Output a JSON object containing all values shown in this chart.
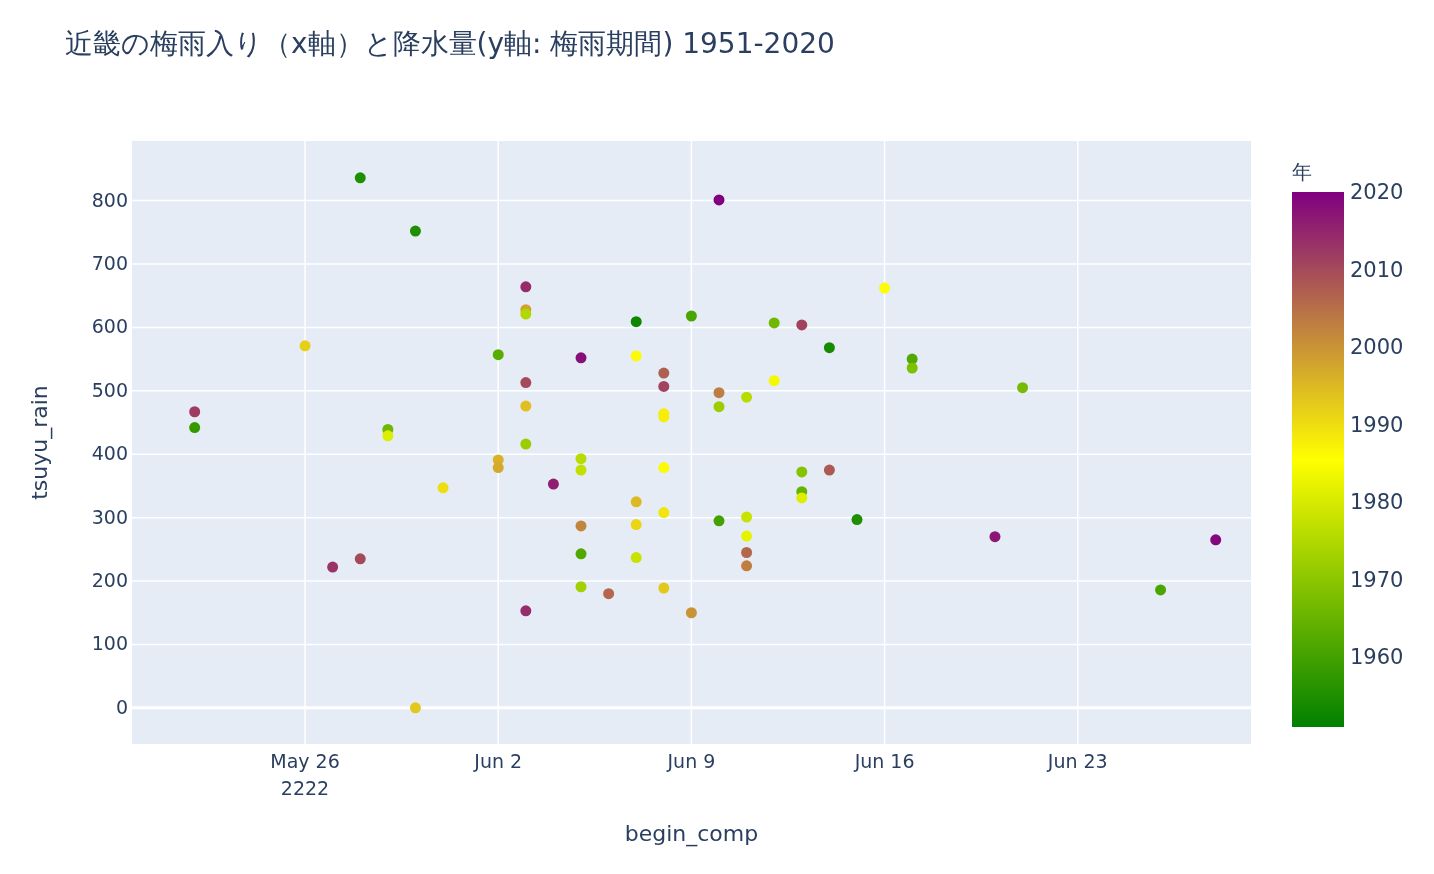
{
  "chart_data": {
    "type": "scatter",
    "title": "近畿の梅雨入り（x軸）と降水量(y軸: 梅雨期間) 1951-2020",
    "xlabel": "begin_comp",
    "ylabel": "tsuyu_rain",
    "clabel": "年",
    "x": [
      "2222-05-22",
      "2222-05-22",
      "2222-05-26",
      "2222-05-27",
      "2222-05-28",
      "2222-05-28",
      "2222-05-29",
      "2222-05-29",
      "2222-05-30",
      "2222-05-30",
      "2222-05-31",
      "2222-06-02",
      "2222-06-02",
      "2222-06-02",
      "2222-06-03",
      "2222-06-03",
      "2222-06-03",
      "2222-06-03",
      "2222-06-03",
      "2222-06-03",
      "2222-06-03",
      "2222-06-04",
      "2222-06-05",
      "2222-06-05",
      "2222-06-05",
      "2222-06-05",
      "2222-06-05",
      "2222-06-05",
      "2222-06-06",
      "2222-06-07",
      "2222-06-07",
      "2222-06-07",
      "2222-06-07",
      "2222-06-07",
      "2222-06-08",
      "2222-06-08",
      "2222-06-08",
      "2222-06-08",
      "2222-06-08",
      "2222-06-08",
      "2222-06-08",
      "2222-06-09",
      "2222-06-09",
      "2222-06-10",
      "2222-06-10",
      "2222-06-10",
      "2222-06-10",
      "2222-06-11",
      "2222-06-11",
      "2222-06-11",
      "2222-06-11",
      "2222-06-11",
      "2222-06-12",
      "2222-06-12",
      "2222-06-13",
      "2222-06-13",
      "2222-06-13",
      "2222-06-13",
      "2222-06-14",
      "2222-06-14",
      "2222-06-15",
      "2222-06-16",
      "2222-06-17",
      "2222-06-17",
      "2222-06-21",
      "2222-06-20",
      "2222-06-26",
      "2222-06-28"
    ],
    "values": [
      467,
      442,
      571,
      222,
      836,
      235,
      439,
      429,
      752,
      0,
      347,
      557,
      391,
      379,
      664,
      628,
      621,
      513,
      476,
      416,
      153,
      353,
      552,
      393,
      375,
      287,
      243,
      191,
      180,
      609,
      555,
      325,
      289,
      237,
      528,
      507,
      464,
      459,
      379,
      308,
      189,
      618,
      150,
      801,
      497,
      475,
      295,
      490,
      301,
      271,
      245,
      224,
      607,
      516,
      604,
      372,
      341,
      331,
      568,
      375,
      297,
      662,
      550,
      536,
      505,
      270,
      186,
      265
    ],
    "cvalues": [
      2012,
      1958,
      1992,
      2013,
      1955,
      2010,
      1966,
      1981,
      1955,
      1993,
      1990,
      1963,
      1996,
      1997,
      2014,
      1998,
      1975,
      2010,
      1994,
      1972,
      2014,
      2016,
      2018,
      1976,
      1977,
      2002,
      1962,
      1973,
      2006,
      1953,
      1986,
      1995,
      1991,
      1978,
      2007,
      2011,
      1988,
      1988,
      1986,
      1989,
      1993,
      1961,
      2000,
      2020,
      2003,
      1972,
      1960,
      1976,
      1978,
      1982,
      2006,
      2003,
      1966,
      1984,
      2011,
      1969,
      1965,
      1981,
      1954,
      2008,
      1955,
      1985,
      1962,
      1968,
      1967,
      2017,
      1961,
      2019
    ],
    "xlim": [
      "2222-05-19T17:30",
      "2222-06-29T06:40"
    ],
    "xticks": [
      {
        "value": "2222-05-26",
        "label": "May 26\n2222"
      },
      {
        "value": "2222-06-02",
        "label": "Jun 2"
      },
      {
        "value": "2222-06-09",
        "label": "Jun 9"
      },
      {
        "value": "2222-06-16",
        "label": "Jun 16"
      },
      {
        "value": "2222-06-23",
        "label": "Jun 23"
      }
    ],
    "ylim": [
      -57,
      894
    ],
    "yticks": [
      0,
      100,
      200,
      300,
      400,
      500,
      600,
      700,
      800
    ],
    "clim": [
      1951,
      2020
    ],
    "cticks": [
      1960,
      1970,
      1980,
      1990,
      2000,
      2010,
      2020
    ],
    "grid": true,
    "marker": "circle"
  }
}
